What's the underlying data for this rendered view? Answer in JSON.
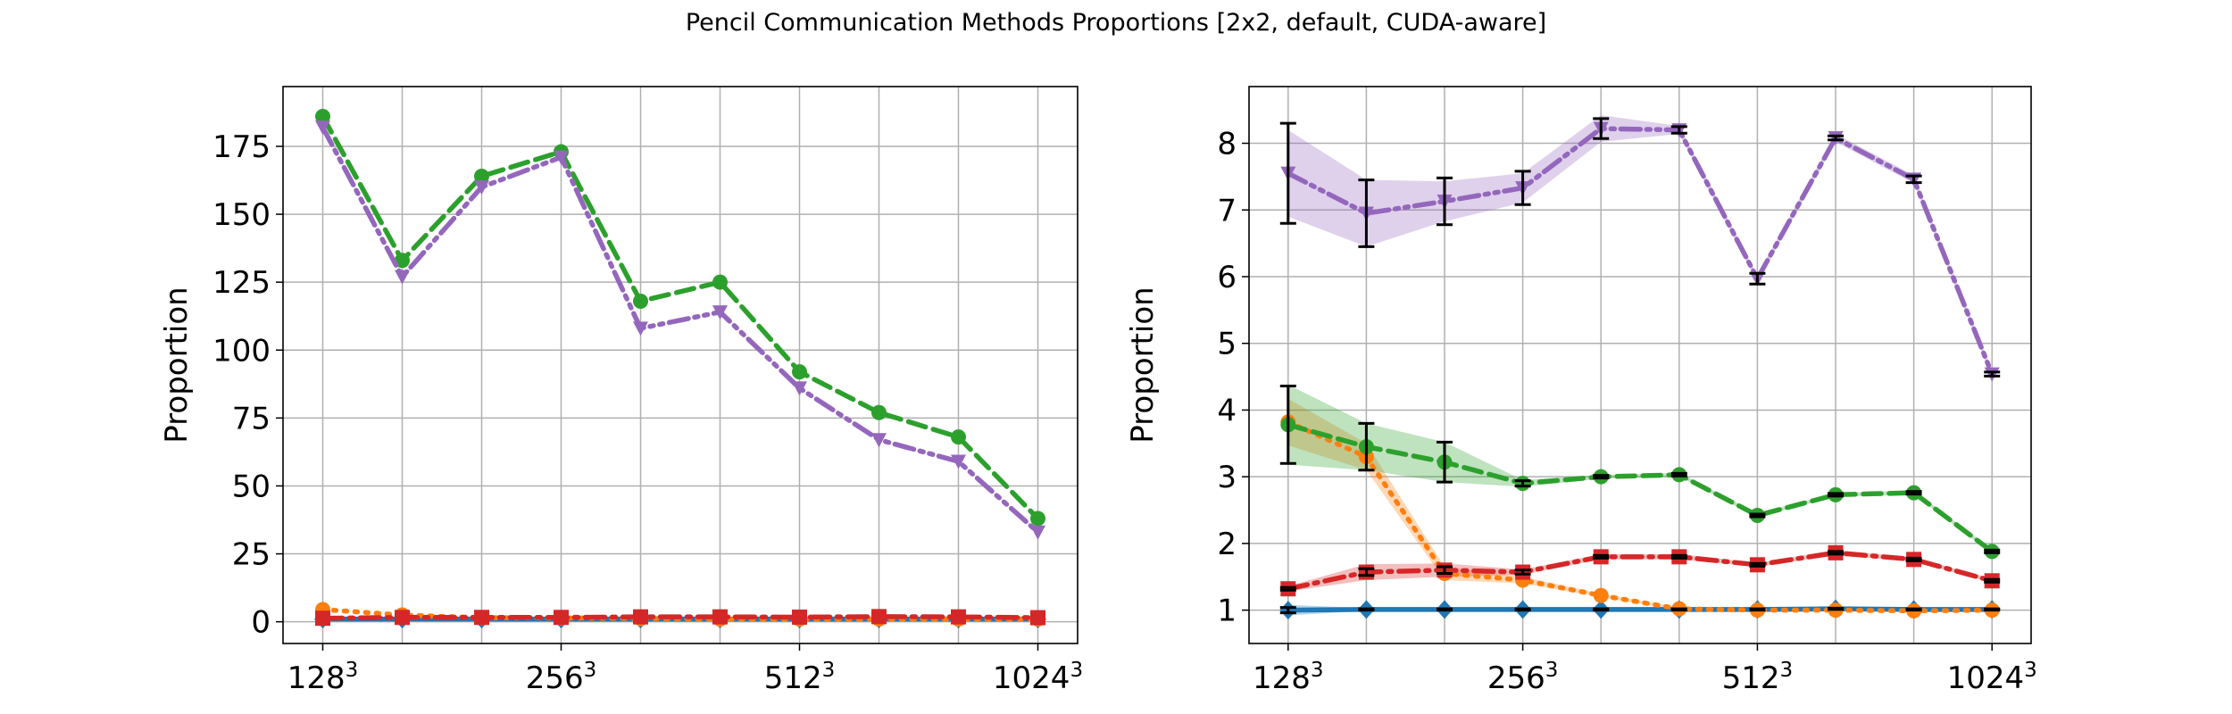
{
  "figure": {
    "title": "Pencil Communication Methods Proportions [2x2, default, CUDA-aware]"
  },
  "colors": {
    "blue": "#1f77b4",
    "orange": "#ff7f0e",
    "green": "#2ca02c",
    "red": "#d62728",
    "purple": "#9467bd"
  },
  "chart_data": [
    {
      "type": "line",
      "ylabel": "Proportion",
      "xlabel": "",
      "grid": true,
      "x_tick_labels": [
        "128",
        "256",
        "512",
        "1024"
      ],
      "x_tick_superscript": "3",
      "x_tick_positions": [
        0,
        3,
        6,
        9
      ],
      "xlim": [
        -0.5,
        9.5
      ],
      "ylim": [
        -8,
        197
      ],
      "y_ticks": [
        0,
        25,
        50,
        75,
        100,
        125,
        150,
        175
      ],
      "series": [
        {
          "color": "blue",
          "dash": "solid",
          "marker": "diamond",
          "values": [
            1,
            1,
            1,
            1,
            1,
            1,
            1,
            1,
            1,
            1
          ]
        },
        {
          "color": "orange",
          "dash": "dotted",
          "marker": "circle",
          "values": [
            4.5,
            2.5,
            1.5,
            1.4,
            1.2,
            1.0,
            1.0,
            1.0,
            1.0,
            1.0
          ]
        },
        {
          "color": "green",
          "dash": "dashed",
          "marker": "circle",
          "values": [
            186,
            133,
            164,
            173,
            118,
            125,
            92,
            77,
            68,
            38
          ]
        },
        {
          "color": "red",
          "dash": "dashdot",
          "marker": "square",
          "values": [
            1.3,
            1.6,
            1.6,
            1.6,
            1.8,
            1.8,
            1.7,
            1.9,
            1.8,
            1.5
          ]
        },
        {
          "color": "purple",
          "dash": "dashdotdot",
          "marker": "triangle-down",
          "values": [
            182,
            127,
            160,
            171,
            108,
            114,
            86,
            67,
            59,
            33
          ]
        }
      ]
    },
    {
      "type": "line",
      "ylabel": "Proportion",
      "xlabel": "",
      "grid": true,
      "x_tick_labels": [
        "128",
        "256",
        "512",
        "1024"
      ],
      "x_tick_superscript": "3",
      "x_tick_positions": [
        0,
        3,
        6,
        9
      ],
      "xlim": [
        -0.5,
        9.5
      ],
      "ylim": [
        0.5,
        8.85
      ],
      "y_ticks": [
        1,
        2,
        3,
        4,
        5,
        6,
        7,
        8
      ],
      "series": [
        {
          "color": "blue",
          "dash": "solid",
          "marker": "diamond",
          "values": [
            1.0,
            1.01,
            1.01,
            1.01,
            1.01,
            1.01,
            1.01,
            1.02,
            1.01,
            1.01
          ],
          "band": [
            0.08,
            0.02,
            0.02,
            0.01,
            0.01,
            0.01,
            0.01,
            0.01,
            0.01,
            0.01
          ],
          "errorbars": [
            0.04,
            0.01,
            0.01,
            0.01,
            0.01,
            0.01,
            0.01,
            0.01,
            0.01,
            0.01
          ]
        },
        {
          "color": "orange",
          "dash": "dotted",
          "marker": "circle",
          "values": [
            3.82,
            3.3,
            1.55,
            1.45,
            1.22,
            1.02,
            1.0,
            1.0,
            0.99,
            1.0
          ],
          "band": [
            0.35,
            0.2,
            0.1,
            0.05,
            0.03,
            0.02,
            0.01,
            0.01,
            0.01,
            0.01
          ],
          "errorbars": [
            0,
            0,
            0,
            0,
            0,
            0,
            0,
            0,
            0,
            0
          ]
        },
        {
          "color": "green",
          "dash": "dashed",
          "marker": "circle",
          "values": [
            3.78,
            3.45,
            3.22,
            2.9,
            3.0,
            3.03,
            2.42,
            2.73,
            2.76,
            1.88
          ],
          "band": [
            0.6,
            0.35,
            0.3,
            0.05,
            0.03,
            0.03,
            0.03,
            0.03,
            0.03,
            0.03
          ],
          "errorbars": [
            0.58,
            0.35,
            0.3,
            0.04,
            0.02,
            0.02,
            0.02,
            0.02,
            0.02,
            0.02
          ]
        },
        {
          "color": "red",
          "dash": "dashdot",
          "marker": "square",
          "values": [
            1.32,
            1.57,
            1.6,
            1.57,
            1.8,
            1.8,
            1.68,
            1.86,
            1.76,
            1.44
          ],
          "band": [
            0.04,
            0.12,
            0.1,
            0.04,
            0.04,
            0.04,
            0.03,
            0.04,
            0.03,
            0.03
          ],
          "errorbars": [
            0.02,
            0.05,
            0.05,
            0.03,
            0.02,
            0.02,
            0.02,
            0.02,
            0.02,
            0.02
          ]
        },
        {
          "color": "purple",
          "dash": "dashdotdot",
          "marker": "triangle-down",
          "values": [
            7.55,
            6.95,
            7.13,
            7.33,
            8.22,
            8.2,
            5.97,
            8.08,
            7.46,
            4.54
          ],
          "band": [
            0.65,
            0.5,
            0.3,
            0.22,
            0.2,
            0.06,
            0.06,
            0.06,
            0.06,
            0.06
          ],
          "errorbars": [
            0.75,
            0.5,
            0.35,
            0.25,
            0.15,
            0.05,
            0.08,
            0.03,
            0.05,
            0.03
          ]
        }
      ]
    }
  ]
}
